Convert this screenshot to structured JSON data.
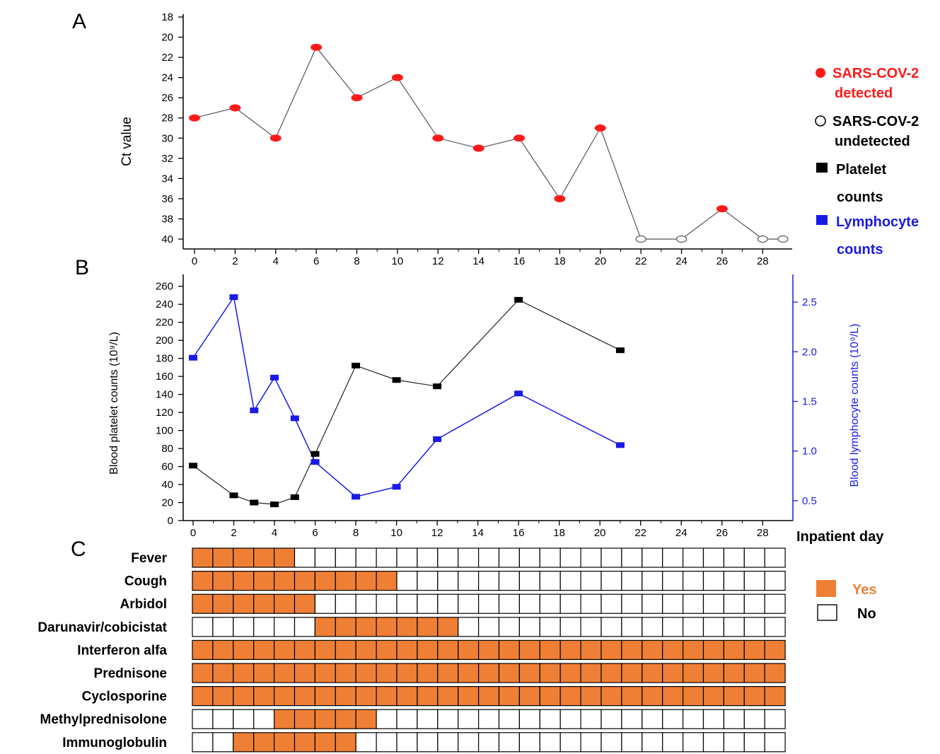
{
  "panels": {
    "a": "A",
    "b": "B",
    "c": "C"
  },
  "colors": {
    "detected": "#ff1a1a",
    "platelet": "#000000",
    "lymphocyte": "#1a1ae6",
    "yes": "#ef7f35",
    "line": "#555555"
  },
  "legend": {
    "detected_l1": "SARS-COV-2",
    "detected_l2": "detected",
    "undetected_l1": "SARS-COV-2",
    "undetected_l2": "undetected",
    "platelet_l1": "Platelet",
    "platelet_l2": "counts",
    "lymph_l1": "Lymphocyte",
    "lymph_l2": "counts",
    "yes": "Yes",
    "no": "No"
  },
  "chart_data": [
    {
      "type": "scatter",
      "panel": "A",
      "ylabel": "Ct value",
      "xlim": [
        0,
        29
      ],
      "ylim": [
        18,
        40
      ],
      "y_inverted": true,
      "x_ticks": [
        0,
        2,
        4,
        6,
        8,
        10,
        12,
        14,
        16,
        18,
        20,
        22,
        24,
        26,
        28
      ],
      "y_ticks": [
        18,
        20,
        22,
        24,
        26,
        28,
        30,
        32,
        34,
        36,
        38,
        40
      ],
      "series": [
        {
          "points": [
            {
              "x": 0,
              "y": 28,
              "detected": true
            },
            {
              "x": 2,
              "y": 27,
              "detected": true
            },
            {
              "x": 4,
              "y": 30,
              "detected": true
            },
            {
              "x": 6,
              "y": 21,
              "detected": true
            },
            {
              "x": 8,
              "y": 26,
              "detected": true
            },
            {
              "x": 10,
              "y": 24,
              "detected": true
            },
            {
              "x": 12,
              "y": 30,
              "detected": true
            },
            {
              "x": 14,
              "y": 31,
              "detected": true
            },
            {
              "x": 16,
              "y": 30,
              "detected": true
            },
            {
              "x": 18,
              "y": 36,
              "detected": true
            },
            {
              "x": 20,
              "y": 29,
              "detected": true
            },
            {
              "x": 22,
              "y": 40,
              "detected": false
            },
            {
              "x": 24,
              "y": 40,
              "detected": false
            },
            {
              "x": 26,
              "y": 37,
              "detected": true
            },
            {
              "x": 28,
              "y": 40,
              "detected": false
            },
            {
              "x": 29,
              "y": 40,
              "detected": false
            }
          ]
        }
      ]
    },
    {
      "type": "line",
      "panel": "B",
      "xlabel": "Inpatient day",
      "ylabel": "Blood platelet counts (10⁹/L)",
      "y2label": "Blood lymphocyte counts (10⁹/L)",
      "xlim": [
        0,
        29
      ],
      "ylim": [
        0,
        270
      ],
      "y2lim": [
        0.3,
        2.75
      ],
      "x_ticks": [
        0,
        2,
        4,
        6,
        8,
        10,
        12,
        14,
        16,
        18,
        20,
        22,
        24,
        26,
        28
      ],
      "y_ticks": [
        0,
        20,
        40,
        60,
        80,
        100,
        120,
        140,
        160,
        180,
        200,
        220,
        240,
        260
      ],
      "y2_ticks": [
        "0.5",
        "1.0",
        "1.5",
        "2.0",
        "2.5"
      ],
      "series": [
        {
          "name": "Platelet counts",
          "axis": "left",
          "x": [
            0,
            2,
            3,
            4,
            5,
            6,
            8,
            10,
            12,
            16,
            21
          ],
          "y": [
            61,
            28,
            20,
            18,
            26,
            74,
            172,
            156,
            149,
            245,
            189
          ]
        },
        {
          "name": "Lymphocyte counts",
          "axis": "right",
          "x": [
            0,
            2,
            3,
            4,
            5,
            6,
            8,
            10,
            12,
            16,
            21
          ],
          "y": [
            1.94,
            2.55,
            1.41,
            1.74,
            1.33,
            0.89,
            0.54,
            0.64,
            1.12,
            1.58,
            1.06
          ]
        }
      ]
    },
    {
      "type": "heatmap",
      "panel": "C",
      "days": 29,
      "rows": [
        {
          "label": "Fever",
          "yes_from": 0,
          "yes_to": 5
        },
        {
          "label": "Cough",
          "yes_from": 0,
          "yes_to": 10
        },
        {
          "label": "Arbidol",
          "yes_from": 0,
          "yes_to": 6
        },
        {
          "label": "Darunavir/cobicistat",
          "yes_from": 6,
          "yes_to": 13
        },
        {
          "label": "Interferon alfa",
          "yes_from": 0,
          "yes_to": 29
        },
        {
          "label": "Prednisone",
          "yes_from": 0,
          "yes_to": 29
        },
        {
          "label": "Cyclosporine",
          "yes_from": 0,
          "yes_to": 29
        },
        {
          "label": "Methylprednisolone",
          "yes_from": 4,
          "yes_to": 9
        },
        {
          "label": "Immunoglobulin",
          "yes_from": 2,
          "yes_to": 8
        }
      ]
    }
  ]
}
